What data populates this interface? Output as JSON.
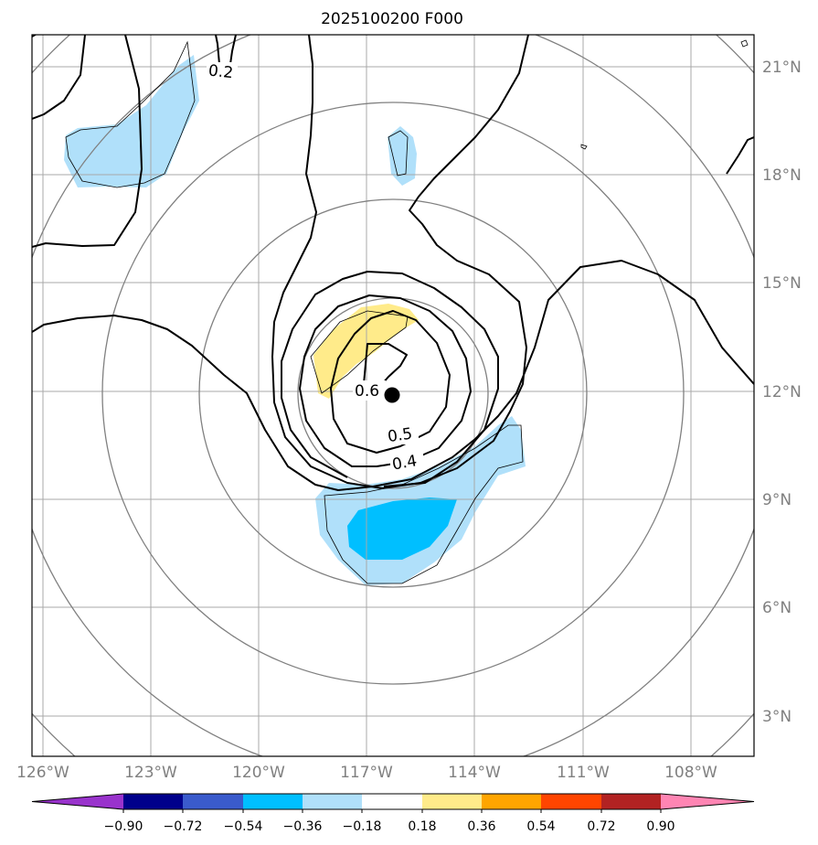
{
  "title": "2025100200 F000",
  "lat_labels": [
    "21°N",
    "18°N",
    "15°N",
    "12°N",
    "9°N",
    "6°N",
    "3°N"
  ],
  "lon_labels": [
    "126°W",
    "123°W",
    "120°W",
    "117°W",
    "114°W",
    "111°W",
    "108°W"
  ],
  "contour_labels": [
    "0.2",
    "0.6",
    "0.5",
    "0.4"
  ],
  "colorbar": {
    "ticks": [
      "−0.90",
      "−0.72",
      "−0.54",
      "−0.36",
      "−0.18",
      "0.18",
      "0.36",
      "0.54",
      "0.72",
      "0.90"
    ],
    "colors": [
      "#9933cc",
      "#00008b",
      "#3a5bcc",
      "#00bfff",
      "#b0e0fa",
      "#ffffff",
      "#ffeb8a",
      "#ffa500",
      "#ff4500",
      "#b22222",
      "#ff85b3"
    ]
  },
  "center_marker": {
    "lat": 11.9,
    "lon": -116.3
  }
}
